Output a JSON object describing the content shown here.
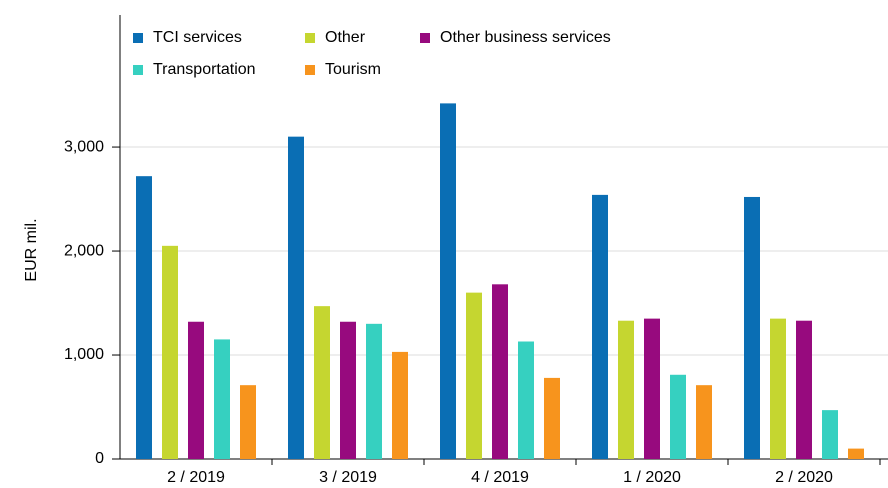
{
  "chart_data": {
    "type": "bar",
    "y_label": "EUR mil.",
    "categories": [
      "2 / 2019",
      "3 / 2019",
      "4 / 2019",
      "1 / 2020",
      "2 / 2020"
    ],
    "series": [
      {
        "name": "TCI services",
        "color": "#0a6eb4",
        "values": [
          2720,
          3100,
          3420,
          2540,
          2520
        ]
      },
      {
        "name": "Other",
        "color": "#c5d630",
        "values": [
          2050,
          1470,
          1600,
          1330,
          1350
        ]
      },
      {
        "name": "Other business services",
        "color": "#970a7e",
        "values": [
          1320,
          1320,
          1680,
          1350,
          1330
        ]
      },
      {
        "name": "Transportation",
        "color": "#36d0c0",
        "values": [
          1150,
          1300,
          1130,
          810,
          470
        ]
      },
      {
        "name": "Tourism",
        "color": "#f7941d",
        "values": [
          710,
          1030,
          780,
          710,
          100
        ]
      }
    ],
    "ylim": [
      0,
      4270
    ],
    "yticks": [
      0,
      {
        "value": 1000,
        "label": "1,000"
      },
      {
        "value": 2000,
        "label": "2,000"
      },
      {
        "value": 3000,
        "label": "3,000"
      }
    ],
    "grid": true,
    "legend": "top"
  }
}
